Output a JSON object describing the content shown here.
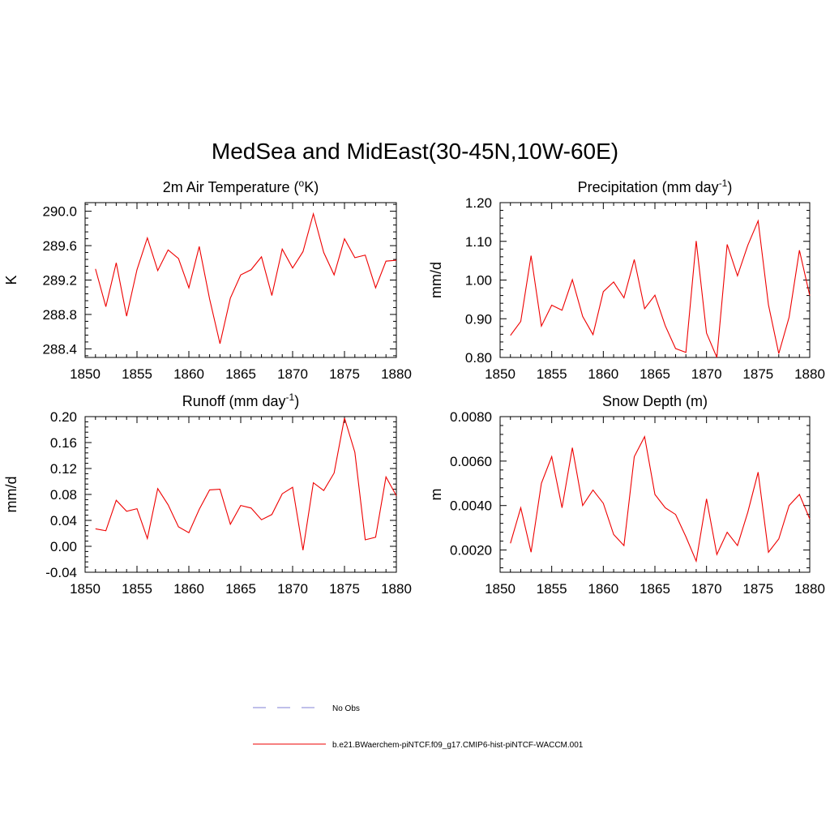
{
  "figure": {
    "title": "MedSea and MidEast(30-45N,10W-60E)"
  },
  "legend": {
    "items": [
      {
        "label": "No Obs",
        "color": "#9999dd",
        "dash": true
      },
      {
        "label": "b.e21.BWaerchem-piNTCF.f09_g17.CMIP6-hist-piNTCF-WACCM.001",
        "color": "#ee0000",
        "dash": false
      }
    ]
  },
  "chart_data": [
    {
      "type": "line",
      "title_main": "2m Air Temperature (",
      "title_sup": "o",
      "title_tail": "K)",
      "ylabel": "K",
      "xlim": [
        1850,
        1880
      ],
      "ylim": [
        288.3,
        290.1
      ],
      "xticks": [
        "1850",
        "1855",
        "1860",
        "1865",
        "1870",
        "1875",
        "1880"
      ],
      "yticks": [
        "288.4",
        "288.8",
        "289.2",
        "289.6",
        "290.0"
      ],
      "series": [
        {
          "color": "#ee0000",
          "x": [
            1851,
            1852,
            1853,
            1854,
            1855,
            1856,
            1857,
            1858,
            1859,
            1860,
            1861,
            1862,
            1863,
            1864,
            1865,
            1866,
            1867,
            1868,
            1869,
            1870,
            1871,
            1872,
            1873,
            1874,
            1875,
            1876,
            1877,
            1878,
            1879,
            1880
          ],
          "values": [
            289.33,
            288.89,
            289.4,
            288.78,
            289.32,
            289.69,
            289.31,
            289.55,
            289.45,
            289.11,
            289.59,
            288.98,
            288.46,
            288.99,
            289.26,
            289.32,
            289.47,
            289.02,
            289.56,
            289.34,
            289.53,
            289.97,
            289.52,
            289.26,
            289.68,
            289.46,
            289.49,
            289.11,
            289.42,
            289.43
          ]
        }
      ]
    },
    {
      "type": "line",
      "title_main": "Precipitation (mm day",
      "title_sup": "-1",
      "title_tail": ")",
      "ylabel": "mm/d",
      "xlim": [
        1850,
        1880
      ],
      "ylim": [
        0.8,
        1.2
      ],
      "xticks": [
        "1850",
        "1855",
        "1860",
        "1865",
        "1870",
        "1875",
        "1880"
      ],
      "yticks": [
        "0.80",
        "0.90",
        "1.00",
        "1.10",
        "1.20"
      ],
      "series": [
        {
          "color": "#ee0000",
          "x": [
            1851,
            1852,
            1853,
            1854,
            1855,
            1856,
            1857,
            1858,
            1859,
            1860,
            1861,
            1862,
            1863,
            1864,
            1865,
            1866,
            1867,
            1868,
            1869,
            1870,
            1871,
            1872,
            1873,
            1874,
            1875,
            1876,
            1877,
            1878,
            1879,
            1880
          ],
          "values": [
            0.857,
            0.893,
            1.063,
            0.881,
            0.935,
            0.922,
            1.001,
            0.906,
            0.859,
            0.97,
            0.995,
            0.954,
            1.053,
            0.926,
            0.961,
            0.882,
            0.823,
            0.813,
            1.101,
            0.863,
            0.8,
            1.092,
            1.011,
            1.09,
            1.153,
            0.936,
            0.81,
            0.904,
            1.077,
            0.96
          ]
        }
      ]
    },
    {
      "type": "line",
      "title_main": "Runoff (mm day",
      "title_sup": "-1",
      "title_tail": ")",
      "ylabel": "mm/d",
      "xlim": [
        1850,
        1880
      ],
      "ylim": [
        -0.04,
        0.2
      ],
      "xticks": [
        "1850",
        "1855",
        "1860",
        "1865",
        "1870",
        "1875",
        "1880"
      ],
      "yticks": [
        "-0.04",
        "0.00",
        "0.04",
        "0.08",
        "0.12",
        "0.16",
        "0.20"
      ],
      "series": [
        {
          "color": "#ee0000",
          "x": [
            1851,
            1852,
            1853,
            1854,
            1855,
            1856,
            1857,
            1858,
            1859,
            1860,
            1861,
            1862,
            1863,
            1864,
            1865,
            1866,
            1867,
            1868,
            1869,
            1870,
            1871,
            1872,
            1873,
            1874,
            1875,
            1876,
            1877,
            1878,
            1879,
            1880
          ],
          "values": [
            0.027,
            0.024,
            0.071,
            0.054,
            0.058,
            0.012,
            0.089,
            0.064,
            0.03,
            0.021,
            0.057,
            0.087,
            0.088,
            0.034,
            0.063,
            0.059,
            0.041,
            0.049,
            0.081,
            0.091,
            -0.006,
            0.098,
            0.086,
            0.113,
            0.198,
            0.145,
            0.01,
            0.014,
            0.107,
            0.078
          ]
        }
      ]
    },
    {
      "type": "line",
      "title_main": "Snow Depth (m)",
      "title_sup": "",
      "title_tail": "",
      "ylabel": "m",
      "xlim": [
        1850,
        1880
      ],
      "ylim": [
        0.001,
        0.008
      ],
      "xticks": [
        "1850",
        "1855",
        "1860",
        "1865",
        "1870",
        "1875",
        "1880"
      ],
      "yticks": [
        "0.0020",
        "0.0040",
        "0.0060",
        "0.0080"
      ],
      "series": [
        {
          "color": "#ee0000",
          "x": [
            1851,
            1852,
            1853,
            1854,
            1855,
            1856,
            1857,
            1858,
            1859,
            1860,
            1861,
            1862,
            1863,
            1864,
            1865,
            1866,
            1867,
            1868,
            1869,
            1870,
            1871,
            1872,
            1873,
            1874,
            1875,
            1876,
            1877,
            1878,
            1879,
            1880
          ],
          "values": [
            0.0023,
            0.0039,
            0.0019,
            0.005,
            0.0062,
            0.0039,
            0.0066,
            0.004,
            0.0047,
            0.0041,
            0.0027,
            0.0022,
            0.0062,
            0.0071,
            0.0045,
            0.0039,
            0.0036,
            0.0026,
            0.0015,
            0.0043,
            0.0018,
            0.0028,
            0.0022,
            0.0037,
            0.0055,
            0.0019,
            0.0025,
            0.004,
            0.0045,
            0.0034
          ]
        }
      ]
    }
  ]
}
